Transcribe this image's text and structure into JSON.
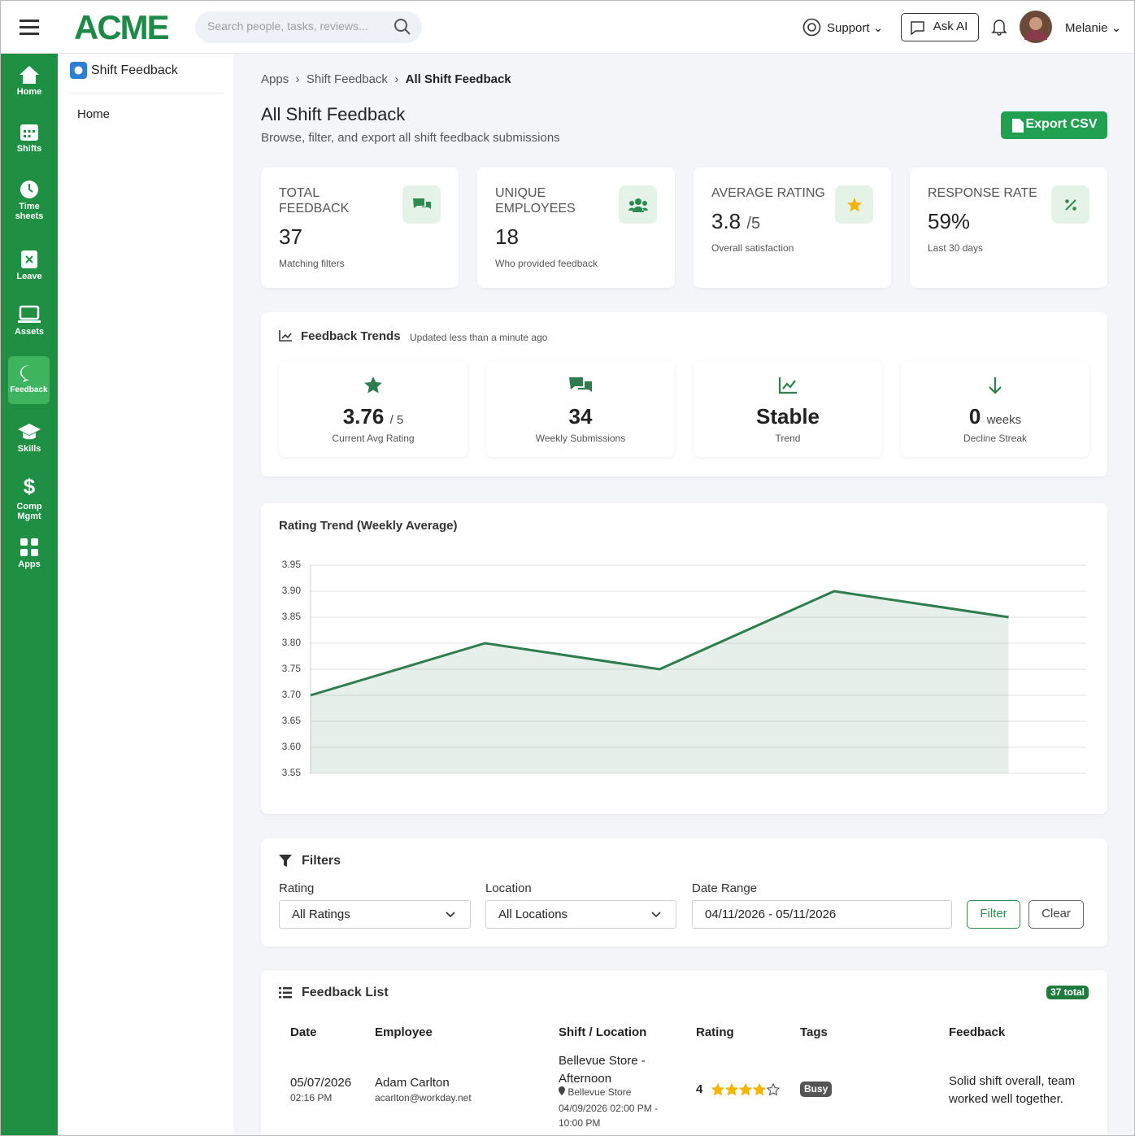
{
  "header": {
    "logo": "ACME",
    "search_placeholder": "Search people, tasks, reviews...",
    "support": "Support",
    "ask_ai": "Ask AI",
    "user": "Melanie"
  },
  "nav": [
    {
      "label": "Home"
    },
    {
      "label": "Shifts"
    },
    {
      "label": "Time sheets"
    },
    {
      "label": "Leave"
    },
    {
      "label": "Assets"
    },
    {
      "label": "Feedback"
    },
    {
      "label": "Skills"
    },
    {
      "label": "Comp Mgmt"
    },
    {
      "label": "Apps"
    }
  ],
  "sidebar": {
    "app": "Shift Feedback",
    "items": [
      "Home"
    ]
  },
  "breadcrumb": [
    "Apps",
    "Shift Feedback",
    "All Shift Feedback"
  ],
  "page": {
    "title": "All Shift Feedback",
    "subtitle": "Browse, filter, and export all shift feedback submissions",
    "export": "Export CSV"
  },
  "stats": [
    {
      "label": "TOTAL FEEDBACK",
      "value": "37",
      "note": "Matching filters"
    },
    {
      "label": "UNIQUE EMPLOYEES",
      "value": "18",
      "note": "Who provided feedback"
    },
    {
      "label": "AVERAGE RATING",
      "value": "3.8",
      "suffix": "/5",
      "note": "Overall satisfaction"
    },
    {
      "label": "RESPONSE RATE",
      "value": "59%",
      "note": "Last 30 days"
    }
  ],
  "trends": {
    "title": "Feedback Trends",
    "updated": "Updated less than a minute ago",
    "items": [
      {
        "value": "3.76",
        "suffix": "/ 5",
        "label": "Current Avg Rating"
      },
      {
        "value": "34",
        "label": "Weekly Submissions"
      },
      {
        "value": "Stable",
        "label": "Trend"
      },
      {
        "value": "0",
        "suffix": "weeks",
        "label": "Decline Streak"
      }
    ]
  },
  "chart_data": {
    "type": "line",
    "title": "Rating Trend (Weekly Average)",
    "categories": [
      null,
      null,
      null,
      null,
      null
    ],
    "values": [
      3.7,
      3.8,
      3.75,
      3.9,
      3.85
    ],
    "color": "#2e7d4f",
    "area": true,
    "grid": true,
    "ylim": [
      3.55,
      3.95
    ],
    "yticks": [
      3.55,
      {
        "value": 3.6,
        "label": "3.60"
      },
      3.65,
      {
        "value": 3.7,
        "label": "3.70"
      },
      3.75,
      {
        "value": 3.8,
        "label": "3.80"
      },
      3.85,
      {
        "value": 3.9,
        "label": "3.90"
      },
      3.95
    ]
  },
  "filters": {
    "title": "Filters",
    "rating_label": "Rating",
    "rating": "All Ratings",
    "location_label": "Location",
    "location": "All Locations",
    "date_label": "Date Range",
    "date": "04/11/2026 - 05/11/2026",
    "filter": "Filter",
    "clear": "Clear"
  },
  "feedback_list": {
    "title": "Feedback List",
    "total": "37 total",
    "columns": [
      "Date",
      "Employee",
      "Shift / Location",
      "Rating",
      "Tags",
      "Feedback"
    ],
    "rows": [
      {
        "date": "05/07/2026",
        "time": "02:16 PM",
        "employee": "Adam Carlton",
        "email": "acarlton@workday.net",
        "shift": "Bellevue Store - Afternoon",
        "location": "Bellevue Store",
        "shift_time": "04/09/2026 02:00 PM - 10:00 PM",
        "rating": 4,
        "tags": [
          "Busy"
        ],
        "feedback": "Solid shift overall, team worked well together."
      }
    ]
  }
}
